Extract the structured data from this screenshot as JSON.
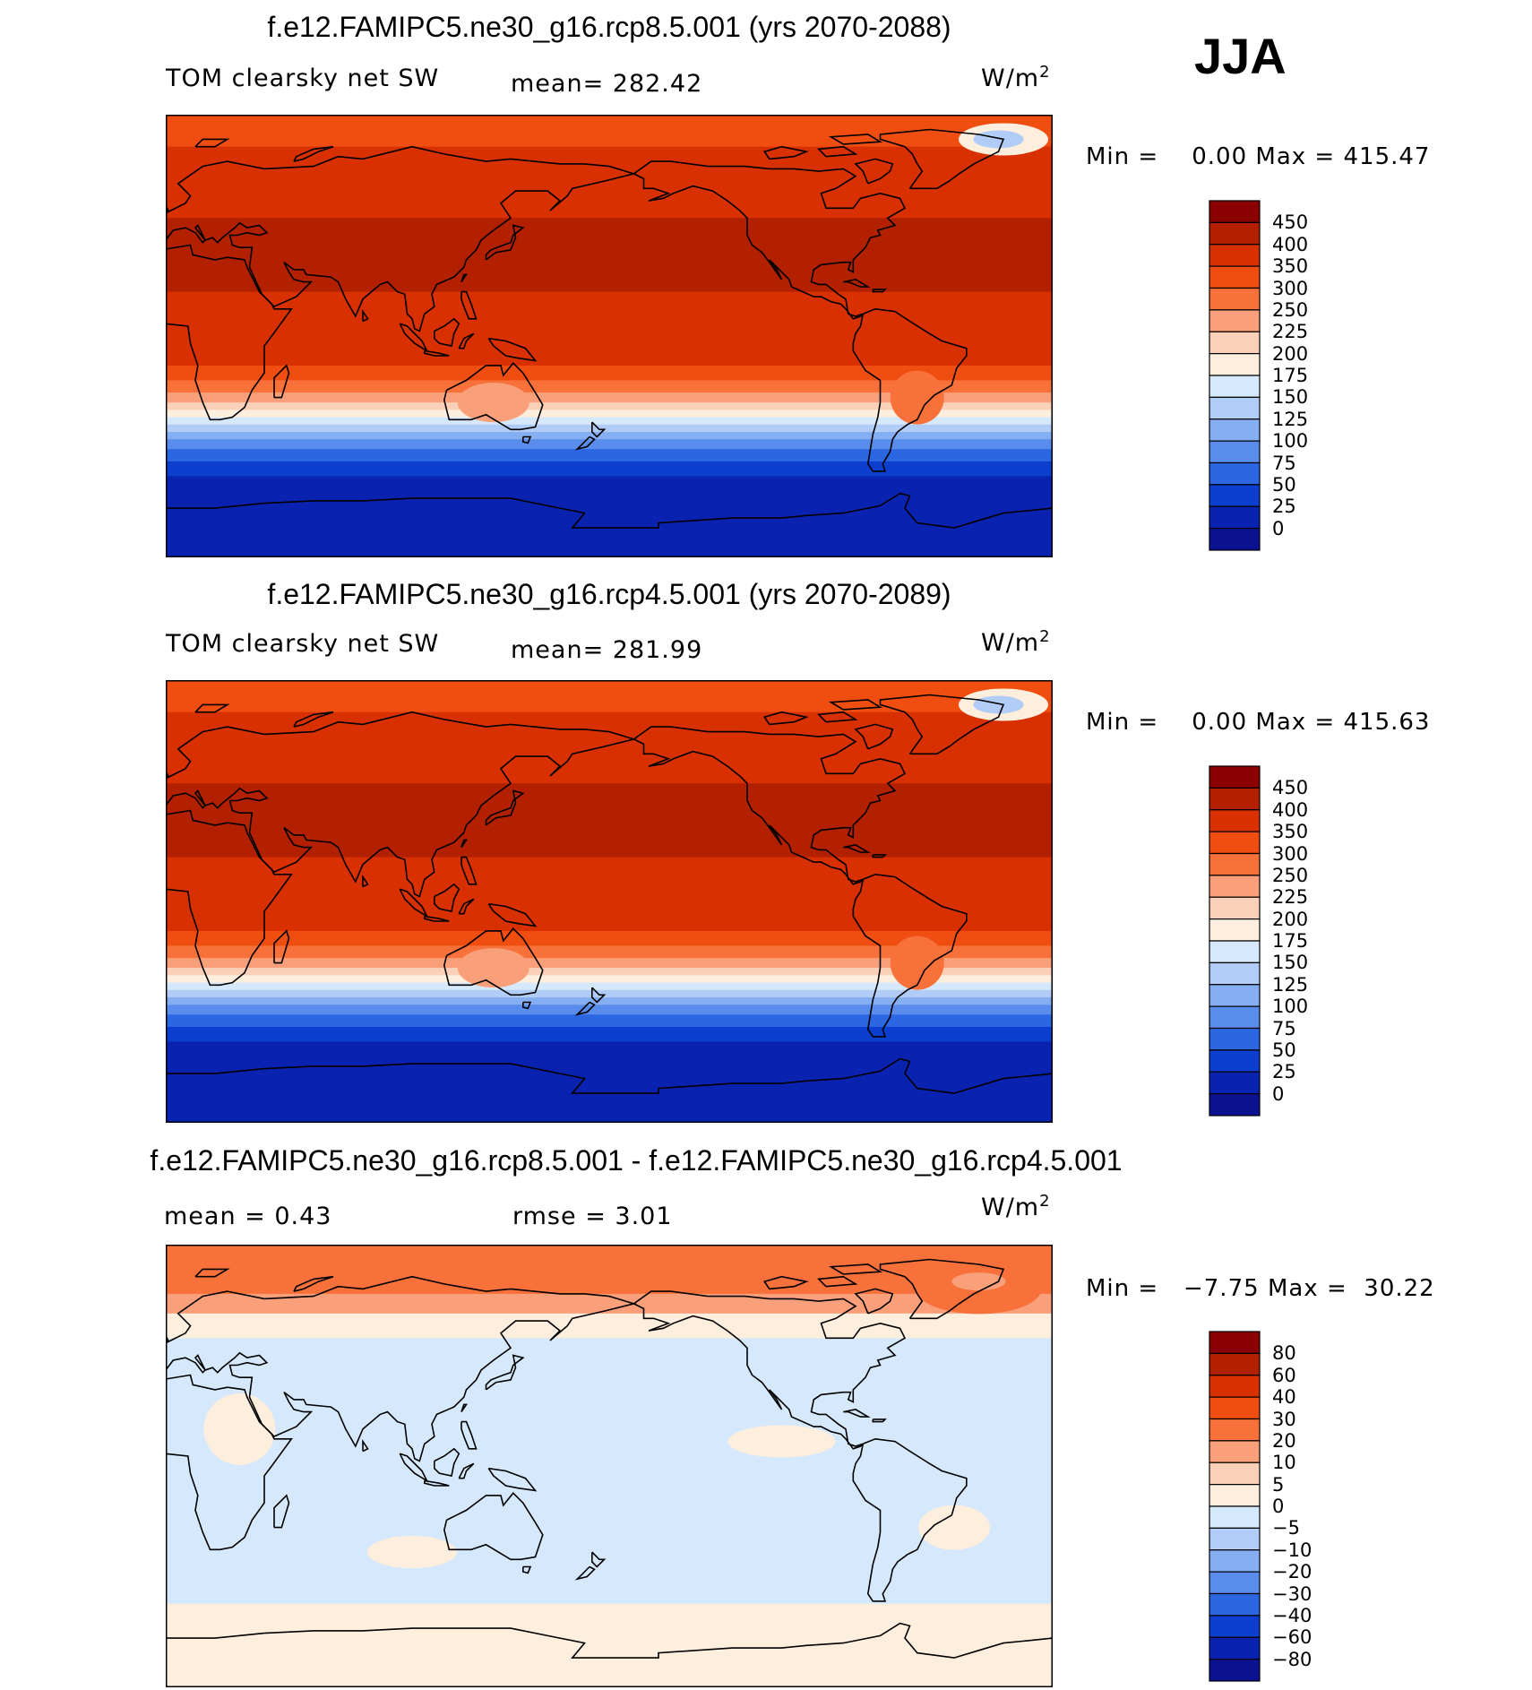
{
  "season": "JJA",
  "panels": [
    {
      "title": "f.e12.FAMIPC5.ne30_g16.rcp8.5.001 (yrs 2070-2088)",
      "variable": "TOM clearsky net SW",
      "stat1": "mean=  282.42",
      "stat2": "",
      "units": "W/m",
      "units_sup": "2",
      "min_label": "Min =",
      "min_value": "0.00",
      "max_label": "Max =",
      "max_value": "415.47",
      "colorbar": {
        "levels": [
          "450",
          "400",
          "350",
          "300",
          "250",
          "225",
          "200",
          "175",
          "150",
          "125",
          "100",
          "75",
          "50",
          "25",
          "0"
        ],
        "colors": [
          "#8b0000",
          "#b22000",
          "#d83000",
          "#f04d10",
          "#f8703a",
          "#f9a07a",
          "#fbd0b8",
          "#fdeede",
          "#d6e8fb",
          "#b0ccf7",
          "#86aef2",
          "#5a8ceb",
          "#2b66e3",
          "#0c3fcf",
          "#0a22b0",
          "#0a1290"
        ]
      },
      "map_type": "absolute"
    },
    {
      "title": "f.e12.FAMIPC5.ne30_g16.rcp4.5.001 (yrs 2070-2089)",
      "variable": "TOM clearsky net SW",
      "stat1": "mean=  281.99",
      "stat2": "",
      "units": "W/m",
      "units_sup": "2",
      "min_label": "Min =",
      "min_value": "0.00",
      "max_label": "Max =",
      "max_value": "415.63",
      "colorbar": {
        "levels": [
          "450",
          "400",
          "350",
          "300",
          "250",
          "225",
          "200",
          "175",
          "150",
          "125",
          "100",
          "75",
          "50",
          "25",
          "0"
        ],
        "colors": [
          "#8b0000",
          "#b22000",
          "#d83000",
          "#f04d10",
          "#f8703a",
          "#f9a07a",
          "#fbd0b8",
          "#fdeede",
          "#d6e8fb",
          "#b0ccf7",
          "#86aef2",
          "#5a8ceb",
          "#2b66e3",
          "#0c3fcf",
          "#0a22b0",
          "#0a1290"
        ]
      },
      "map_type": "absolute"
    },
    {
      "title": "f.e12.FAMIPC5.ne30_g16.rcp8.5.001 - f.e12.FAMIPC5.ne30_g16.rcp4.5.001",
      "variable": "mean =    0.43",
      "stat1": "rmse =    3.01",
      "stat2": "",
      "units": "W/m",
      "units_sup": "2",
      "min_label": "Min =",
      "min_value": "−7.75",
      "max_label": "Max =",
      "max_value": "30.22",
      "colorbar": {
        "levels": [
          "80",
          "60",
          "40",
          "30",
          "20",
          "10",
          "5",
          "0",
          "−5",
          "−10",
          "−20",
          "−30",
          "−40",
          "−60",
          "−80"
        ],
        "colors": [
          "#8b0000",
          "#b22000",
          "#d83000",
          "#f04d10",
          "#f8703a",
          "#f9a07a",
          "#fbd0b8",
          "#fdeede",
          "#d6e8fb",
          "#b0ccf7",
          "#86aef2",
          "#5a8ceb",
          "#2b66e3",
          "#0c3fcf",
          "#0a22b0",
          "#0a1290"
        ]
      },
      "map_type": "difference"
    }
  ]
}
